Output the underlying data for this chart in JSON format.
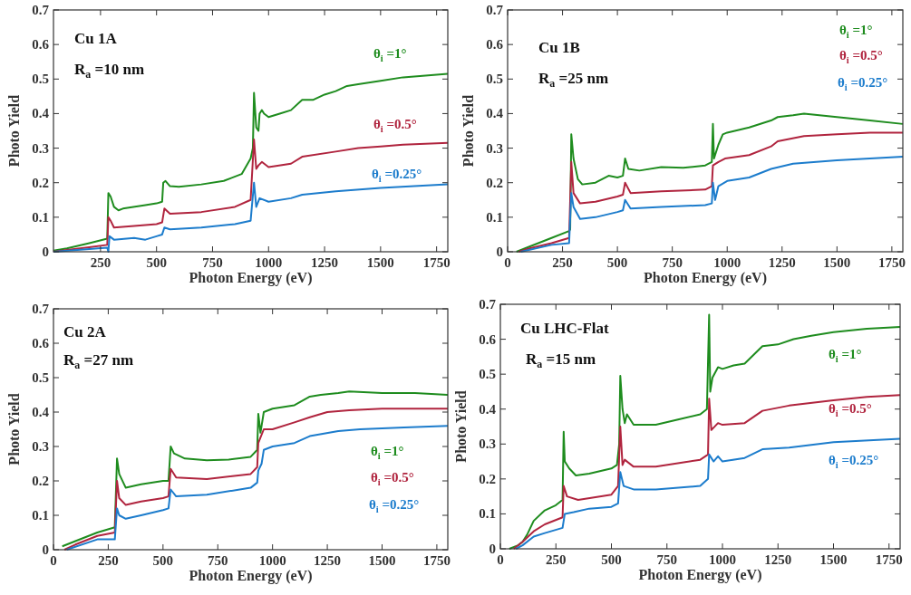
{
  "chart_data": [
    {
      "type": "line",
      "title": "Cu 1A",
      "xlabel": "Photon Energy (eV)",
      "ylabel": "Photo Yield",
      "annotations": [
        "R$_{a}$=10 nm"
      ],
      "xlim": [
        40,
        1800
      ],
      "xticks": [
        250,
        500,
        750,
        1000,
        1250,
        1500,
        1750
      ],
      "ylim": [
        0,
        0.7
      ],
      "yticks": [
        0,
        0.1,
        0.2,
        0.3,
        0.4,
        0.5,
        0.6,
        0.7
      ],
      "series": [
        {
          "name": "θ$_{i}$=1°",
          "color": "#1e8c1e",
          "x": [
            40,
            100,
            200,
            280,
            285,
            295,
            310,
            330,
            350,
            450,
            500,
            525,
            530,
            540,
            560,
            600,
            700,
            800,
            880,
            920,
            930,
            935,
            945,
            955,
            960,
            970,
            980,
            1000,
            1050,
            1100,
            1150,
            1200,
            1250,
            1300,
            1350,
            1400,
            1500,
            1600,
            1700,
            1800
          ],
          "values": [
            0.003,
            0.01,
            0.025,
            0.038,
            0.17,
            0.16,
            0.13,
            0.12,
            0.125,
            0.135,
            0.14,
            0.145,
            0.2,
            0.205,
            0.19,
            0.188,
            0.195,
            0.205,
            0.225,
            0.27,
            0.3,
            0.46,
            0.36,
            0.35,
            0.4,
            0.41,
            0.4,
            0.39,
            0.4,
            0.41,
            0.44,
            0.44,
            0.455,
            0.465,
            0.48,
            0.485,
            0.495,
            0.505,
            0.51,
            0.515
          ]
        },
        {
          "name": "θ$_{i}$=0.5°",
          "color": "#b0243e",
          "x": [
            40,
            100,
            200,
            280,
            285,
            295,
            310,
            400,
            500,
            525,
            535,
            560,
            700,
            850,
            920,
            935,
            945,
            955,
            970,
            1000,
            1100,
            1150,
            1300,
            1400,
            1500,
            1600,
            1800
          ],
          "values": [
            0,
            0.005,
            0.013,
            0.02,
            0.1,
            0.09,
            0.07,
            0.075,
            0.08,
            0.085,
            0.125,
            0.11,
            0.115,
            0.13,
            0.15,
            0.325,
            0.24,
            0.25,
            0.26,
            0.245,
            0.255,
            0.275,
            0.29,
            0.3,
            0.305,
            0.31,
            0.315
          ]
        },
        {
          "name": "θ$_{i}$=0.25°",
          "color": "#1c7ccc",
          "x": [
            40,
            200,
            280,
            285,
            290,
            310,
            400,
            450,
            500,
            525,
            535,
            560,
            700,
            850,
            920,
            935,
            945,
            960,
            1000,
            1100,
            1150,
            1300,
            1500,
            1800
          ],
          "values": [
            0,
            0.008,
            0.012,
            0,
            0.045,
            0.035,
            0.04,
            0.035,
            0.045,
            0.05,
            0.07,
            0.065,
            0.07,
            0.08,
            0.09,
            0.2,
            0.13,
            0.155,
            0.145,
            0.155,
            0.165,
            0.175,
            0.185,
            0.195
          ]
        }
      ]
    },
    {
      "type": "line",
      "title": "Cu 1B",
      "xlabel": "Photon Energy (eV)",
      "ylabel": "Photo Yield",
      "annotations": [
        "R$_{a}$=25 nm"
      ],
      "xlim": [
        0,
        1800
      ],
      "xticks": [
        0,
        250,
        500,
        750,
        1000,
        1250,
        1500,
        1750
      ],
      "ylim": [
        0,
        0.7
      ],
      "yticks": [
        0,
        0.1,
        0.2,
        0.3,
        0.4,
        0.5,
        0.6,
        0.7
      ],
      "series": [
        {
          "name": "θ$_{i}$=1°",
          "color": "#1e8c1e",
          "x": [
            40,
            100,
            200,
            280,
            285,
            290,
            300,
            320,
            340,
            400,
            460,
            500,
            525,
            535,
            550,
            600,
            700,
            800,
            900,
            930,
            935,
            940,
            960,
            980,
            1000,
            1100,
            1200,
            1230,
            1300,
            1350,
            1500,
            1650,
            1800
          ],
          "values": [
            0,
            0.015,
            0.04,
            0.06,
            0.065,
            0.34,
            0.27,
            0.21,
            0.195,
            0.2,
            0.22,
            0.215,
            0.22,
            0.27,
            0.24,
            0.235,
            0.245,
            0.243,
            0.25,
            0.26,
            0.37,
            0.27,
            0.31,
            0.34,
            0.345,
            0.36,
            0.38,
            0.39,
            0.395,
            0.4,
            0.39,
            0.38,
            0.37
          ]
        },
        {
          "name": "θ$_{i}$=0.5°",
          "color": "#b0243e",
          "x": [
            50,
            100,
            200,
            280,
            290,
            300,
            330,
            400,
            500,
            525,
            535,
            560,
            700,
            900,
            930,
            935,
            960,
            990,
            1100,
            1200,
            1230,
            1350,
            1500,
            1650,
            1800
          ],
          "values": [
            0,
            0.01,
            0.025,
            0.04,
            0.26,
            0.17,
            0.14,
            0.145,
            0.16,
            0.165,
            0.2,
            0.17,
            0.175,
            0.18,
            0.19,
            0.25,
            0.26,
            0.27,
            0.28,
            0.305,
            0.32,
            0.335,
            0.34,
            0.345,
            0.345
          ]
        },
        {
          "name": "θ$_{i}$=0.25°",
          "color": "#1c7ccc",
          "x": [
            60,
            200,
            280,
            290,
            300,
            330,
            400,
            500,
            525,
            535,
            560,
            700,
            900,
            930,
            935,
            945,
            960,
            1000,
            1100,
            1200,
            1300,
            1500,
            1800
          ],
          "values": [
            0,
            0.02,
            0.025,
            0.17,
            0.13,
            0.095,
            0.1,
            0.115,
            0.12,
            0.15,
            0.125,
            0.13,
            0.135,
            0.14,
            0.2,
            0.15,
            0.19,
            0.205,
            0.215,
            0.24,
            0.255,
            0.265,
            0.275
          ]
        }
      ]
    },
    {
      "type": "line",
      "title": "Cu 2A",
      "xlabel": "Photon Energy (eV)",
      "ylabel": "Photo Yield",
      "annotations": [
        "R$_{a}$=27 nm"
      ],
      "xlim": [
        0,
        1800
      ],
      "xticks": [
        0,
        250,
        500,
        750,
        1000,
        1250,
        1500,
        1750
      ],
      "ylim": [
        0,
        0.7
      ],
      "yticks": [
        0,
        0.1,
        0.2,
        0.3,
        0.4,
        0.5,
        0.6,
        0.7
      ],
      "series": [
        {
          "name": "θ$_{i}$=1°",
          "color": "#1e8c1e",
          "x": [
            40,
            100,
            200,
            280,
            290,
            300,
            330,
            400,
            500,
            525,
            535,
            550,
            600,
            700,
            800,
            900,
            930,
            935,
            945,
            960,
            1000,
            1100,
            1170,
            1220,
            1300,
            1350,
            1500,
            1650,
            1800
          ],
          "values": [
            0.01,
            0.025,
            0.05,
            0.065,
            0.265,
            0.22,
            0.18,
            0.19,
            0.2,
            0.2,
            0.3,
            0.28,
            0.265,
            0.26,
            0.262,
            0.27,
            0.29,
            0.395,
            0.34,
            0.4,
            0.41,
            0.42,
            0.445,
            0.45,
            0.455,
            0.46,
            0.455,
            0.455,
            0.45
          ]
        },
        {
          "name": "θ$_{i}$=0.5°",
          "color": "#b0243e",
          "x": [
            50,
            100,
            200,
            280,
            290,
            300,
            330,
            400,
            500,
            525,
            535,
            560,
            700,
            900,
            930,
            935,
            960,
            1000,
            1100,
            1170,
            1250,
            1350,
            1500,
            1800
          ],
          "values": [
            0,
            0.015,
            0.04,
            0.05,
            0.2,
            0.15,
            0.13,
            0.14,
            0.15,
            0.155,
            0.235,
            0.21,
            0.205,
            0.22,
            0.24,
            0.31,
            0.35,
            0.35,
            0.37,
            0.385,
            0.4,
            0.405,
            0.41,
            0.41
          ]
        },
        {
          "name": "θ$_{i}$=0.25°",
          "color": "#1c7ccc",
          "x": [
            60,
            200,
            280,
            290,
            300,
            330,
            400,
            500,
            525,
            535,
            560,
            700,
            900,
            930,
            935,
            950,
            960,
            1000,
            1100,
            1170,
            1300,
            1400,
            1600,
            1800
          ],
          "values": [
            0,
            0.03,
            0.03,
            0.12,
            0.1,
            0.09,
            0.1,
            0.115,
            0.12,
            0.175,
            0.155,
            0.16,
            0.18,
            0.195,
            0.23,
            0.25,
            0.29,
            0.3,
            0.31,
            0.33,
            0.345,
            0.35,
            0.355,
            0.36
          ]
        }
      ]
    },
    {
      "type": "line",
      "title": "Cu LHC-Flat",
      "xlabel": "Photon Energy (eV)",
      "ylabel": "Photo Yield",
      "annotations": [
        "R$_{a}$=15 nm"
      ],
      "xlim": [
        0,
        1800
      ],
      "xticks": [
        0,
        250,
        500,
        750,
        1000,
        1250,
        1500,
        1750
      ],
      "ylim": [
        0,
        0.7
      ],
      "yticks": [
        0,
        0.1,
        0.2,
        0.3,
        0.4,
        0.5,
        0.6,
        0.7
      ],
      "series": [
        {
          "name": "θ$_{i}$=1°",
          "color": "#1e8c1e",
          "x": [
            40,
            80,
            100,
            120,
            150,
            200,
            250,
            280,
            285,
            290,
            310,
            340,
            400,
            500,
            525,
            535,
            540,
            550,
            560,
            570,
            600,
            700,
            800,
            900,
            930,
            940,
            945,
            955,
            980,
            1000,
            1050,
            1100,
            1180,
            1250,
            1320,
            1400,
            1500,
            1650,
            1800
          ],
          "values": [
            0,
            0.01,
            0.02,
            0.04,
            0.08,
            0.11,
            0.125,
            0.14,
            0.335,
            0.25,
            0.23,
            0.21,
            0.215,
            0.23,
            0.24,
            0.3,
            0.495,
            0.4,
            0.36,
            0.385,
            0.355,
            0.355,
            0.37,
            0.385,
            0.4,
            0.67,
            0.45,
            0.49,
            0.52,
            0.515,
            0.525,
            0.53,
            0.58,
            0.585,
            0.6,
            0.61,
            0.62,
            0.63,
            0.635
          ]
        },
        {
          "name": "θ$_{i}$=0.5°",
          "color": "#b0243e",
          "x": [
            60,
            100,
            150,
            200,
            280,
            285,
            300,
            350,
            500,
            530,
            540,
            550,
            560,
            600,
            700,
            900,
            935,
            940,
            950,
            980,
            1000,
            1100,
            1180,
            1300,
            1500,
            1650,
            1800
          ],
          "values": [
            0,
            0.02,
            0.05,
            0.07,
            0.09,
            0.18,
            0.15,
            0.14,
            0.155,
            0.18,
            0.35,
            0.24,
            0.255,
            0.235,
            0.235,
            0.255,
            0.27,
            0.43,
            0.34,
            0.36,
            0.355,
            0.36,
            0.395,
            0.41,
            0.425,
            0.435,
            0.44
          ]
        },
        {
          "name": "θ$_{i}$=0.25°",
          "color": "#1c7ccc",
          "x": [
            70,
            100,
            150,
            200,
            280,
            290,
            330,
            400,
            500,
            530,
            540,
            555,
            600,
            700,
            900,
            935,
            940,
            960,
            980,
            1000,
            1100,
            1180,
            1300,
            1500,
            1800
          ],
          "values": [
            0,
            0.01,
            0.035,
            0.045,
            0.06,
            0.1,
            0.105,
            0.115,
            0.12,
            0.13,
            0.22,
            0.18,
            0.17,
            0.17,
            0.18,
            0.2,
            0.27,
            0.25,
            0.265,
            0.25,
            0.26,
            0.285,
            0.29,
            0.305,
            0.315
          ]
        }
      ]
    }
  ]
}
